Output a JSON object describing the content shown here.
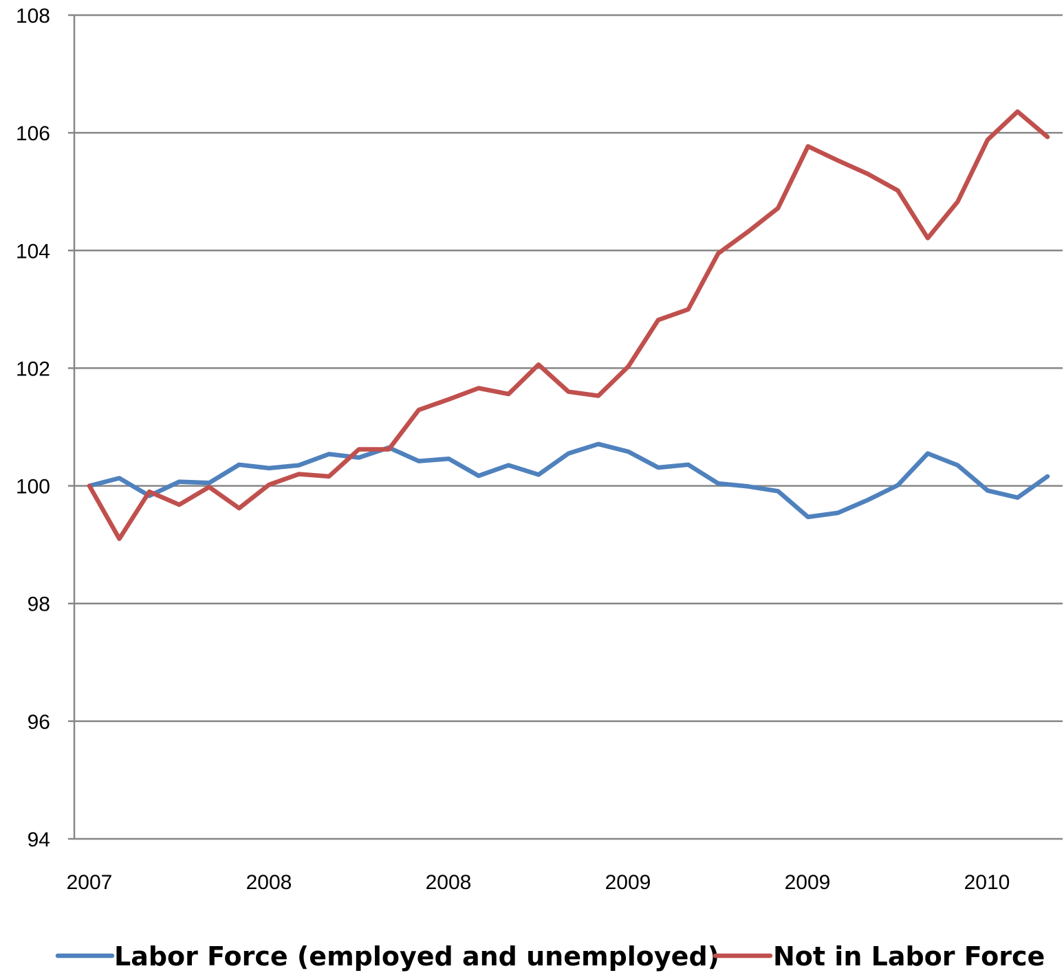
{
  "chart_data": {
    "type": "line",
    "title": "",
    "xlabel": "",
    "ylabel": "",
    "ylim": [
      94,
      108
    ],
    "yticks": [
      94,
      96,
      98,
      100,
      102,
      104,
      106,
      108
    ],
    "x_tick_labels": [
      "2007",
      "2008",
      "2008",
      "2009",
      "2009",
      "2010"
    ],
    "grid": true,
    "legend_position": "bottom",
    "series": [
      {
        "name": "Labor Force (employed and unemployed)",
        "color": "#4F81BD",
        "values": [
          100.0,
          100.13,
          99.83,
          100.07,
          100.05,
          100.36,
          100.3,
          100.35,
          100.54,
          100.48,
          100.65,
          100.42,
          100.46,
          100.17,
          100.35,
          100.19,
          100.55,
          100.71,
          100.58,
          100.31,
          100.36,
          100.04,
          99.99,
          99.91,
          99.47,
          99.54,
          99.76,
          100.01,
          100.55,
          100.35,
          99.92,
          99.8,
          100.16
        ]
      },
      {
        "name": "Not in Labor Force",
        "color": "#C0504D",
        "values": [
          100.0,
          99.1,
          99.9,
          99.68,
          99.98,
          99.62,
          100.02,
          100.2,
          100.16,
          100.62,
          100.62,
          101.29,
          101.47,
          101.66,
          101.56,
          102.06,
          101.6,
          101.53,
          102.03,
          102.82,
          103.0,
          103.95,
          104.32,
          104.72,
          105.77,
          105.53,
          105.3,
          105.02,
          104.21,
          104.83,
          105.88,
          106.36,
          105.93
        ]
      }
    ]
  }
}
